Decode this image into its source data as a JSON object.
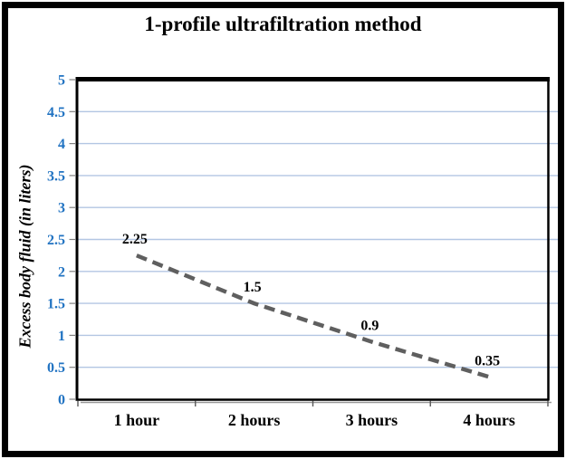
{
  "chart_data": {
    "type": "line",
    "title": "1-profile ultrafiltration method",
    "ylabel": "Excess body fluid (in liters)",
    "xlabel": "",
    "categories": [
      "1 hour",
      "2 hours",
      "3 hours",
      "4 hours"
    ],
    "values": [
      2.25,
      1.5,
      0.9,
      0.35
    ],
    "point_labels": [
      "2.25",
      "1.5",
      "0.9",
      "0.35"
    ],
    "ylim": [
      0,
      5
    ],
    "ytick_step": 0.5,
    "ytick_labels": [
      "0",
      "0.5",
      "1",
      "1.5",
      "2",
      "2.5",
      "3",
      "3.5",
      "4",
      "4.5",
      "5"
    ],
    "grid": true,
    "legend": "none",
    "line_style": "dashed",
    "colors": {
      "line": "#5F5F5F",
      "gridline": "#B3C6E3",
      "axis_text": "#2173C2",
      "data_label": "#000000",
      "axis_line": "#000000",
      "tick_gray": "#808080",
      "shadow": "#999999",
      "frame": "#000000",
      "background": "#FFFFFF"
    }
  }
}
